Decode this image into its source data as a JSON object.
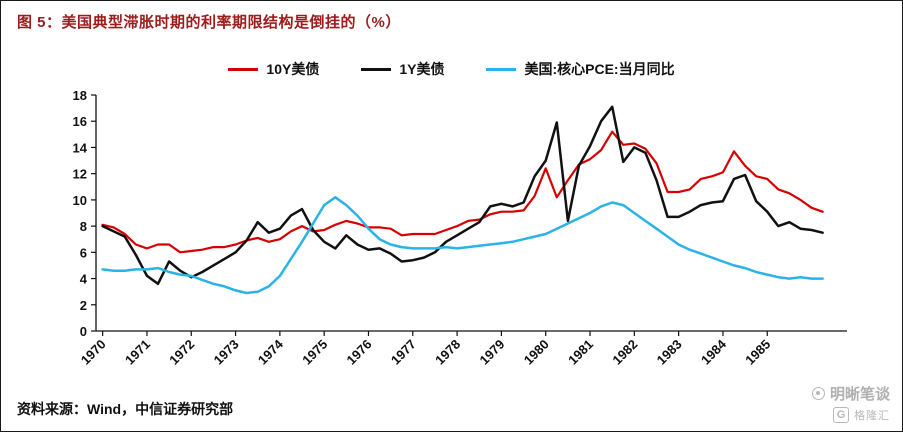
{
  "figure": {
    "title": "图 5：美国典型滞胀时期的利率期限结构是倒挂的（%）",
    "source": "资料来源：Wind，中信证券研究部",
    "watermark": {
      "account": "明晰笔谈",
      "logo_letter": "G",
      "logo_name": "格隆汇"
    }
  },
  "colors": {
    "title": "#9E1B1B",
    "axis": "#111111",
    "watermark": "#b0b0b0"
  },
  "chart_data": {
    "type": "line",
    "title": "",
    "xlabel": "",
    "ylabel": "",
    "grid": false,
    "legend_position": "top-center",
    "ylim": [
      0,
      18
    ],
    "ytick_step": 2,
    "xlim": [
      1969.85,
      1986.8
    ],
    "xticks": [
      1970,
      1971,
      1972,
      1973,
      1974,
      1975,
      1976,
      1977,
      1978,
      1979,
      1980,
      1981,
      1982,
      1983,
      1984,
      1985
    ],
    "x": [
      1970.0,
      1970.25,
      1970.5,
      1970.75,
      1971.0,
      1971.25,
      1971.5,
      1971.75,
      1972.0,
      1972.25,
      1972.5,
      1972.75,
      1973.0,
      1973.25,
      1973.5,
      1973.75,
      1974.0,
      1974.25,
      1974.5,
      1974.75,
      1975.0,
      1975.25,
      1975.5,
      1975.75,
      1976.0,
      1976.25,
      1976.5,
      1976.75,
      1977.0,
      1977.25,
      1977.5,
      1977.75,
      1978.0,
      1978.25,
      1978.5,
      1978.75,
      1979.0,
      1979.25,
      1979.5,
      1979.75,
      1980.0,
      1980.25,
      1980.5,
      1980.75,
      1981.0,
      1981.25,
      1981.5,
      1981.75,
      1982.0,
      1982.25,
      1982.5,
      1982.75,
      1983.0,
      1983.25,
      1983.5,
      1983.75,
      1984.0,
      1984.25,
      1984.5,
      1984.75,
      1985.0,
      1985.25,
      1985.5,
      1985.75,
      1986.0,
      1986.25
    ],
    "series": [
      {
        "name": "10Y美债",
        "color": "#D70000",
        "values": [
          8.1,
          7.9,
          7.4,
          6.6,
          6.3,
          6.6,
          6.6,
          6.0,
          6.1,
          6.2,
          6.4,
          6.4,
          6.6,
          6.9,
          7.1,
          6.8,
          7.0,
          7.6,
          8.0,
          7.6,
          7.7,
          8.1,
          8.4,
          8.2,
          7.9,
          7.9,
          7.8,
          7.3,
          7.4,
          7.4,
          7.4,
          7.7,
          8.0,
          8.4,
          8.5,
          8.9,
          9.1,
          9.1,
          9.2,
          10.3,
          12.4,
          10.2,
          11.5,
          12.7,
          13.1,
          13.8,
          15.2,
          14.2,
          14.3,
          13.9,
          12.8,
          10.6,
          10.6,
          10.8,
          11.6,
          11.8,
          12.1,
          13.7,
          12.6,
          11.8,
          11.6,
          10.8,
          10.5,
          10.0,
          9.4,
          9.1
        ]
      },
      {
        "name": "1Y美债",
        "color": "#111111",
        "values": [
          8.0,
          7.6,
          7.2,
          5.8,
          4.2,
          3.6,
          5.3,
          4.6,
          4.1,
          4.5,
          5.0,
          5.5,
          6.0,
          6.9,
          8.3,
          7.5,
          7.8,
          8.8,
          9.3,
          7.7,
          6.8,
          6.3,
          7.3,
          6.6,
          6.2,
          6.3,
          5.9,
          5.3,
          5.4,
          5.6,
          6.0,
          6.8,
          7.3,
          7.8,
          8.3,
          9.5,
          9.7,
          9.5,
          9.8,
          11.8,
          13.0,
          15.9,
          8.4,
          12.6,
          14.1,
          16.0,
          17.1,
          12.9,
          14.0,
          13.6,
          11.5,
          8.7,
          8.7,
          9.1,
          9.6,
          9.8,
          9.9,
          11.6,
          11.9,
          9.9,
          9.1,
          8.0,
          8.3,
          7.8,
          7.7,
          7.5
        ]
      },
      {
        "name": "美国:核心PCE:当月同比",
        "color": "#2BB3E8",
        "values": [
          4.7,
          4.6,
          4.6,
          4.7,
          4.7,
          4.8,
          4.5,
          4.3,
          4.2,
          3.9,
          3.6,
          3.4,
          3.1,
          2.9,
          3.0,
          3.4,
          4.2,
          5.5,
          6.8,
          8.2,
          9.6,
          10.2,
          9.6,
          8.8,
          7.8,
          7.0,
          6.6,
          6.4,
          6.3,
          6.3,
          6.3,
          6.4,
          6.3,
          6.4,
          6.5,
          6.6,
          6.7,
          6.8,
          7.0,
          7.2,
          7.4,
          7.8,
          8.2,
          8.6,
          9.0,
          9.5,
          9.8,
          9.6,
          9.0,
          8.4,
          7.8,
          7.2,
          6.6,
          6.2,
          5.9,
          5.6,
          5.3,
          5.0,
          4.8,
          4.5,
          4.3,
          4.1,
          4.0,
          4.1,
          4.0,
          4.0
        ]
      }
    ]
  }
}
